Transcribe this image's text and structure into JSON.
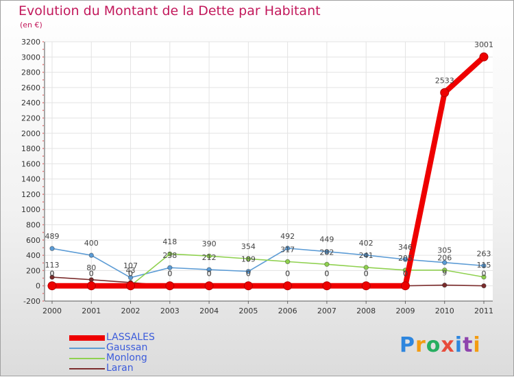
{
  "chart_data": {
    "type": "line",
    "title": "Evolution du Montant de la Dette par Habitant",
    "subtitle": "(en €)",
    "xlabel": "",
    "ylabel": "",
    "x": [
      "2000",
      "2001",
      "2002",
      "2003",
      "2004",
      "2005",
      "2006",
      "2007",
      "2008",
      "2009",
      "2010",
      "2011"
    ],
    "ylim": [
      -200,
      3200
    ],
    "yticks": [
      -200,
      0,
      200,
      400,
      600,
      800,
      1000,
      1200,
      1400,
      1600,
      1800,
      2000,
      2200,
      2400,
      2600,
      2800,
      3000,
      3200
    ],
    "grid": true,
    "legend_position": "bottom-left",
    "series": [
      {
        "name": "LASSALES",
        "color": "#ee0000",
        "values": [
          0,
          0,
          0,
          0,
          0,
          0,
          0,
          0,
          0,
          0,
          2533,
          3001
        ],
        "labels": [
          "0",
          "0",
          "0",
          "0",
          "0",
          "0",
          "0",
          "0",
          "0",
          "0",
          "2533",
          "3001"
        ]
      },
      {
        "name": "Gaussan",
        "color": "#5b9bd5",
        "values": [
          489,
          400,
          107,
          238,
          212,
          189,
          492,
          449,
          402,
          346,
          305,
          263
        ],
        "labels": [
          "489",
          "400",
          "107",
          "238",
          "212",
          "189",
          "492",
          "449",
          "402",
          "346",
          "305",
          "263"
        ]
      },
      {
        "name": "Monlong",
        "color": "#8fd14f",
        "values": [
          0,
          0,
          0,
          418,
          390,
          354,
          317,
          282,
          241,
          205,
          206,
          115
        ],
        "labels": [
          "0",
          "0",
          "0",
          "418",
          "390",
          "354",
          "317",
          "282",
          "241",
          "205",
          "206",
          "115"
        ]
      },
      {
        "name": "Laran",
        "color": "#7b2c2c",
        "values": [
          113,
          80,
          43,
          0,
          0,
          0,
          0,
          0,
          0,
          0,
          9,
          0
        ],
        "labels": [
          "113",
          "80",
          "43",
          "0",
          "0",
          "0",
          "0",
          "0",
          "0",
          "0",
          "9",
          "0"
        ]
      }
    ]
  },
  "logo": {
    "text": "Proxiti"
  }
}
